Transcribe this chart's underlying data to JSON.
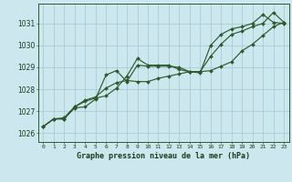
{
  "title": "Graphe pression niveau de la mer (hPa)",
  "background_color": "#cce8ee",
  "grid_color": "#aaccd4",
  "line_color": "#2d5a2d",
  "marker_color": "#2d5a2d",
  "x_labels": [
    "0",
    "1",
    "2",
    "3",
    "4",
    "5",
    "6",
    "7",
    "8",
    "9",
    "10",
    "11",
    "12",
    "13",
    "14",
    "15",
    "16",
    "17",
    "18",
    "19",
    "20",
    "21",
    "22",
    "23"
  ],
  "ylim": [
    1025.6,
    1031.9
  ],
  "yticks": [
    1026,
    1027,
    1028,
    1029,
    1030,
    1031
  ],
  "line1": [
    1026.3,
    1026.65,
    1026.65,
    1027.15,
    1027.2,
    1027.55,
    1028.65,
    1028.85,
    1028.35,
    1029.1,
    1029.05,
    1029.05,
    1029.05,
    1029.0,
    1028.8,
    1028.75,
    1030.0,
    1030.5,
    1030.75,
    1030.85,
    1031.0,
    1031.4,
    1031.05,
    1031.0
  ],
  "line2": [
    1026.3,
    1026.65,
    1026.65,
    1027.2,
    1027.45,
    1027.6,
    1027.7,
    1028.05,
    1028.6,
    1029.4,
    1029.1,
    1029.1,
    1029.1,
    1028.9,
    1028.8,
    1028.8,
    1029.5,
    1030.05,
    1030.5,
    1030.65,
    1030.85,
    1031.0,
    1031.5,
    1031.05
  ],
  "line3": [
    1026.3,
    1026.65,
    1026.7,
    1027.2,
    1027.5,
    1027.65,
    1028.05,
    1028.3,
    1028.4,
    1028.35,
    1028.35,
    1028.5,
    1028.6,
    1028.7,
    1028.8,
    1028.8,
    1028.85,
    1029.05,
    1029.25,
    1029.75,
    1030.05,
    1030.45,
    1030.85,
    1031.05
  ]
}
